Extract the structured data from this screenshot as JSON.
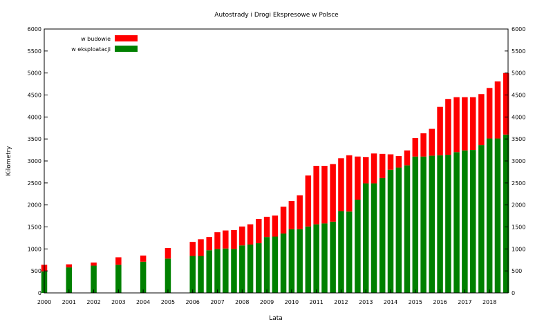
{
  "chart_data": {
    "type": "bar",
    "stacked": true,
    "title": "Autostrady  i Drogi Ekspresowe w Polsce",
    "xlabel": "Lata",
    "ylabel": "Kilometry",
    "ylim": [
      0,
      6000
    ],
    "yticks": [
      0,
      500,
      1000,
      1500,
      2000,
      2500,
      3000,
      3500,
      4000,
      4500,
      5000,
      5500,
      6000
    ],
    "xlim": [
      2000,
      2018.75
    ],
    "xticks": [
      "2000",
      "2001",
      "2002",
      "2003",
      "2004",
      "2005",
      "2006",
      "2007",
      "2008",
      "2009",
      "2010",
      "2011",
      "2012",
      "2013",
      "2014",
      "2015",
      "2016",
      "2017",
      "2018"
    ],
    "grid": false,
    "legend_position": "top-left",
    "x": [
      2000,
      2001,
      2002,
      2003,
      2004,
      2005,
      2006,
      2006.33,
      2006.67,
      2007,
      2007.33,
      2007.67,
      2008,
      2008.33,
      2008.67,
      2009,
      2009.33,
      2009.67,
      2010,
      2010.33,
      2010.67,
      2011,
      2011.33,
      2011.67,
      2012,
      2012.33,
      2012.67,
      2013,
      2013.33,
      2013.67,
      2014,
      2014.33,
      2014.67,
      2015,
      2015.33,
      2015.67,
      2016,
      2016.33,
      2016.67,
      2017,
      2017.33,
      2017.67,
      2018,
      2018.33,
      2018.67
    ],
    "series": [
      {
        "name": "w eksploatacji",
        "color": "#008000",
        "values": [
          490,
          580,
          620,
          640,
          710,
          780,
          840,
          840,
          970,
          1000,
          1010,
          1000,
          1080,
          1100,
          1130,
          1270,
          1280,
          1350,
          1450,
          1450,
          1510,
          1560,
          1580,
          1620,
          1860,
          1850,
          2120,
          2490,
          2490,
          2610,
          2800,
          2850,
          2900,
          3100,
          3100,
          3120,
          3130,
          3140,
          3200,
          3240,
          3250,
          3360,
          3510,
          3510,
          3600
        ]
      },
      {
        "name": "w budowie",
        "color": "#ff0000",
        "values": [
          150,
          70,
          70,
          170,
          140,
          240,
          320,
          380,
          300,
          380,
          410,
          430,
          430,
          460,
          550,
          460,
          480,
          610,
          640,
          770,
          1160,
          1330,
          1310,
          1310,
          1200,
          1280,
          980,
          600,
          680,
          550,
          350,
          260,
          340,
          420,
          530,
          610,
          1100,
          1270,
          1250,
          1210,
          1200,
          1160,
          1150,
          1300,
          1400
        ]
      }
    ]
  }
}
